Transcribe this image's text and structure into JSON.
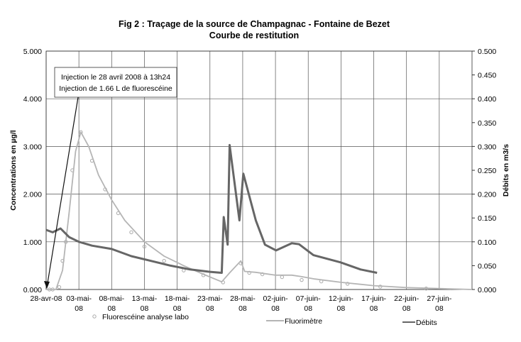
{
  "chart_data": {
    "type": "line",
    "title": "Fig 2 : Traçage de la source de Champagnac - Fontaine de Bezet",
    "subtitle": "Courbe de restitution",
    "ylabel": "Concentrations en µg/l",
    "y2label": "Débits en m3/s",
    "ylim": [
      0,
      5
    ],
    "y2lim": [
      0,
      0.5
    ],
    "xlim_days_since_28_avr_08": [
      0,
      65
    ],
    "grid": true,
    "legend_position": "bottom",
    "x_tick_labels": [
      "28-avr-08",
      "03-mai-08",
      "08-mai-08",
      "13-mai-08",
      "18-mai-08",
      "23-mai-08",
      "28-mai-08",
      "02-juin-08",
      "07-juin-08",
      "12-juin-08",
      "17-juin-08",
      "22-juin-08",
      "27-juin-08"
    ],
    "y_tick_labels": [
      "0.000",
      "1.000",
      "2.000",
      "3.000",
      "4.000",
      "5.000"
    ],
    "y2_tick_labels": [
      "0.000",
      "0.050",
      "0.100",
      "0.150",
      "0.200",
      "0.250",
      "0.300",
      "0.350",
      "0.400",
      "0.450",
      "0.500"
    ],
    "annotation": {
      "lines": [
        "Injection le 28 avril 2008 à 13h24",
        "Injection de 1.66 L de fluorescéine"
      ],
      "x_day": 0
    },
    "series": [
      {
        "name": "Fluorescéine analyse labo",
        "axis": "left",
        "style": "markers",
        "color": "#aaaaaa",
        "x": [
          0.5,
          1,
          2,
          2.5,
          3,
          4,
          5.3,
          7,
          9,
          11,
          13,
          15,
          18,
          21,
          24,
          27,
          29.7,
          31,
          33,
          36,
          39,
          42,
          46,
          51,
          58
        ],
        "y": [
          0,
          0,
          0.05,
          0.6,
          1.0,
          2.5,
          3.3,
          2.7,
          2.1,
          1.6,
          1.2,
          0.9,
          0.6,
          0.4,
          0.3,
          0.15,
          0.55,
          0.35,
          0.32,
          0.26,
          0.2,
          0.17,
          0.12,
          0.06,
          0.02
        ]
      },
      {
        "name": "Fluorimètre",
        "axis": "left",
        "style": "line",
        "color": "#b5b5b5",
        "x": [
          0,
          1.5,
          2.5,
          3.5,
          4.5,
          5.3,
          6.5,
          8,
          10,
          12,
          15,
          18,
          21,
          24,
          26.8,
          28,
          29.7,
          30.3,
          32,
          35,
          37.5,
          39,
          41,
          45,
          50,
          55,
          60,
          65
        ],
        "y": [
          0,
          0,
          0.4,
          1.6,
          2.9,
          3.3,
          3.0,
          2.4,
          1.88,
          1.45,
          1.0,
          0.7,
          0.5,
          0.32,
          0.16,
          0.35,
          0.6,
          0.38,
          0.36,
          0.3,
          0.3,
          0.27,
          0.22,
          0.15,
          0.08,
          0.04,
          0.02,
          0
        ]
      },
      {
        "name": "Débits",
        "axis": "right",
        "style": "line",
        "color": "#666666",
        "x": [
          0,
          1,
          2.2,
          3.5,
          5,
          7,
          10,
          13,
          16,
          19,
          22,
          25,
          26.8,
          27.1,
          27.7,
          28.0,
          29.5,
          30.1,
          32,
          33.4,
          35.1,
          37.5,
          38.6,
          40.8,
          44.9,
          48,
          50.5
        ],
        "y": [
          0.125,
          0.12,
          0.128,
          0.11,
          0.1,
          0.092,
          0.085,
          0.07,
          0.06,
          0.05,
          0.042,
          0.037,
          0.035,
          0.152,
          0.094,
          0.303,
          0.145,
          0.243,
          0.145,
          0.094,
          0.082,
          0.097,
          0.095,
          0.072,
          0.057,
          0.042,
          0.035
        ]
      }
    ]
  }
}
